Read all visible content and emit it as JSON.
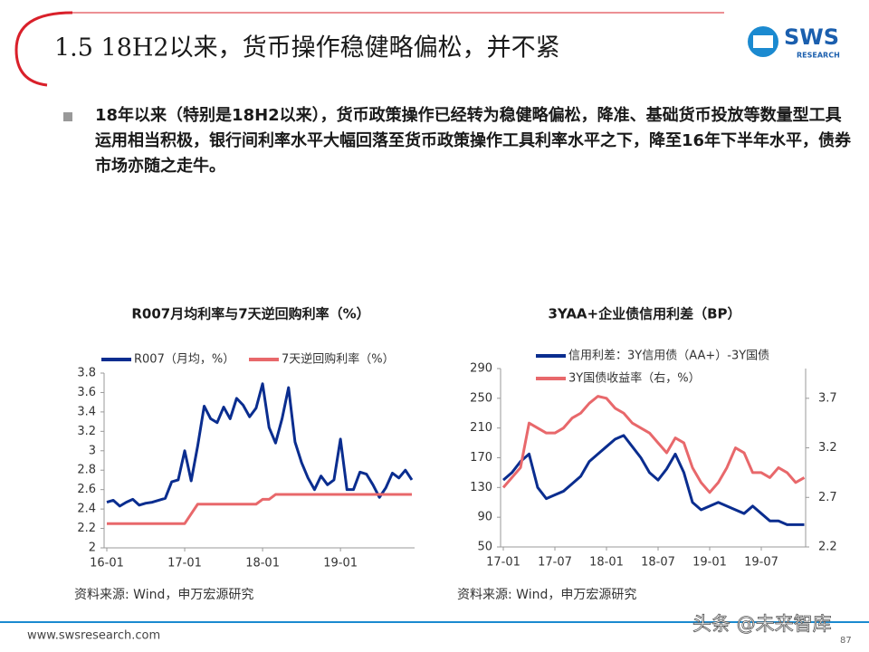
{
  "header": {
    "title": "1.5 18H2以来，货币操作稳健略偏松，并不紧",
    "logo": "SWS",
    "logo_sub": "RESEARCH"
  },
  "bullet": "18年以来（特别是18H2以来），货币政策操作已经转为稳健略偏松，降准、基础货币投放等数量型工具运用相当积极，银行间利率水平大幅回落至货币政策操作工具利率水平之下，降至16年下半年水平，债券市场亦随之走牛。",
  "chart_data": [
    {
      "type": "line",
      "title": "R007月均利率与7天逆回购利率（%）",
      "categories": [
        "16-01",
        null,
        null,
        null,
        null,
        null,
        null,
        null,
        null,
        null,
        null,
        null,
        "17-01",
        null,
        null,
        null,
        null,
        null,
        null,
        null,
        null,
        null,
        null,
        null,
        "18-01",
        null,
        null,
        null,
        null,
        null,
        null,
        null,
        null,
        null,
        null,
        null,
        "19-01",
        null,
        null,
        null,
        null,
        null,
        null,
        null,
        null,
        null,
        null,
        null
      ],
      "series": [
        {
          "name": "R007（月均，%）",
          "color": "#0a2d8f",
          "values": [
            2.47,
            2.49,
            2.43,
            2.47,
            2.5,
            2.44,
            2.46,
            2.47,
            2.49,
            2.51,
            2.68,
            2.7,
            3.0,
            2.69,
            3.05,
            3.46,
            3.33,
            3.29,
            3.45,
            3.33,
            3.54,
            3.47,
            3.35,
            3.44,
            3.69,
            3.24,
            3.08,
            3.33,
            3.65,
            3.09,
            2.88,
            2.72,
            2.6,
            2.74,
            2.65,
            2.7,
            3.12,
            2.6,
            2.6,
            2.78,
            2.76,
            2.65,
            2.52,
            2.62,
            2.77,
            2.72,
            2.8,
            2.7
          ]
        },
        {
          "name": "7天逆回购利率（%）",
          "color": "#e8686b",
          "values": [
            2.25,
            2.25,
            2.25,
            2.25,
            2.25,
            2.25,
            2.25,
            2.25,
            2.25,
            2.25,
            2.25,
            2.25,
            2.25,
            2.35,
            2.45,
            2.45,
            2.45,
            2.45,
            2.45,
            2.45,
            2.45,
            2.45,
            2.45,
            2.45,
            2.5,
            2.5,
            2.55,
            2.55,
            2.55,
            2.55,
            2.55,
            2.55,
            2.55,
            2.55,
            2.55,
            2.55,
            2.55,
            2.55,
            2.55,
            2.55,
            2.55,
            2.55,
            2.55,
            2.55,
            2.55,
            2.55,
            2.55,
            2.55
          ]
        }
      ],
      "ylim": [
        2,
        3.8
      ],
      "yticks": [
        2,
        2.2,
        2.4,
        2.6,
        2.8,
        3,
        3.2,
        3.4,
        3.6,
        3.8
      ],
      "source": "资料来源: Wind，申万宏源研究"
    },
    {
      "type": "line",
      "title": "3YAA+企业债信用利差（BP）",
      "categories": [
        "17-01",
        null,
        null,
        null,
        null,
        null,
        "17-07",
        null,
        null,
        null,
        null,
        null,
        "18-01",
        null,
        null,
        null,
        null,
        null,
        "18-07",
        null,
        null,
        null,
        null,
        null,
        "19-01",
        null,
        null,
        null,
        null,
        null,
        "19-07",
        null,
        null,
        null,
        null,
        null
      ],
      "series": [
        {
          "name": "信用利差：3Y信用债（AA+）-3Y国债",
          "color": "#0a2d8f",
          "values": [
            140,
            150,
            165,
            175,
            130,
            115,
            120,
            125,
            135,
            145,
            165,
            175,
            185,
            195,
            200,
            185,
            170,
            150,
            140,
            155,
            175,
            150,
            110,
            100,
            105,
            110,
            105,
            100,
            95,
            105,
            95,
            85,
            85,
            80,
            80,
            80
          ]
        },
        {
          "name": "3Y国债收益率（右，%）",
          "color": "#e8686b",
          "axis": "y2",
          "values": [
            2.8,
            2.9,
            3.0,
            3.45,
            3.4,
            3.35,
            3.35,
            3.4,
            3.5,
            3.55,
            3.65,
            3.72,
            3.7,
            3.6,
            3.55,
            3.45,
            3.4,
            3.35,
            3.25,
            3.15,
            3.3,
            3.25,
            3.0,
            2.85,
            2.75,
            2.85,
            3.0,
            3.2,
            3.15,
            2.95,
            2.95,
            2.9,
            3.0,
            2.95,
            2.85,
            2.9
          ]
        }
      ],
      "ylim": [
        50,
        290
      ],
      "yticks": [
        50,
        90,
        130,
        170,
        210,
        250,
        290
      ],
      "y2lim": [
        2.2,
        4.0
      ],
      "y2ticks": [
        2.2,
        2.7,
        3.2,
        3.7
      ],
      "source": "资料来源: Wind，申万宏源研究"
    }
  ],
  "footer": {
    "url": "www.swsresearch.com",
    "page": "87",
    "watermark": "头条 @未来智库"
  }
}
